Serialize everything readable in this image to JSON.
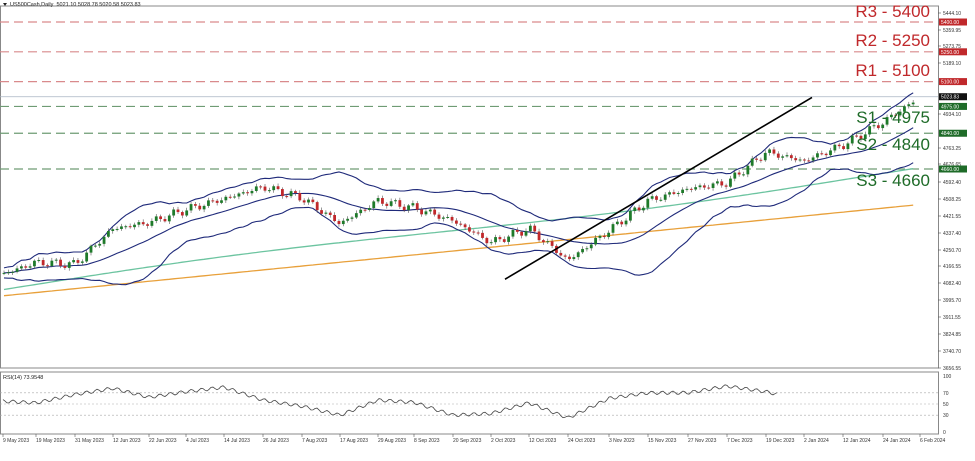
{
  "header": {
    "symbol": "US500Cash,Daily",
    "ohlc": "5021.10 5028.78 5020.58 5023.83"
  },
  "levels": {
    "resistance": [
      {
        "label": "R3 - 5400",
        "price": 5400,
        "tag": "5400.00"
      },
      {
        "label": "R2 - 5250",
        "price": 5250,
        "tag": "5250.00"
      },
      {
        "label": "R1 - 5100",
        "price": 5100,
        "tag": "5100.00"
      }
    ],
    "support": [
      {
        "label": "S1 - 4975",
        "price": 4975,
        "tag": "4975.00"
      },
      {
        "label": "S2 - 4840",
        "price": 4840,
        "tag": "4840.00"
      },
      {
        "label": "S3 - 4660",
        "price": 4660,
        "tag": "4660.00"
      }
    ],
    "colors": {
      "resistance": "#c0282b",
      "support": "#1e6b28"
    }
  },
  "current_price": {
    "value": 5023.83,
    "tag": "5023.83"
  },
  "rsi": {
    "label": "RSI(14) 73.9548",
    "ticks": [
      "100",
      "70",
      "50",
      "30",
      "0"
    ]
  },
  "chart_data": [
    {
      "type": "candlestick",
      "title": "US500Cash,Daily",
      "ohlc_last": {
        "open": 5021.1,
        "high": 5028.78,
        "low": 5020.58,
        "close": 5023.83
      },
      "y_ticks": [
        "5444.10",
        "5359.95",
        "5273.75",
        "5189.10",
        "4934.10",
        "4763.25",
        "4676.65",
        "4592.40",
        "4508.25",
        "4421.55",
        "4337.40",
        "4250.70",
        "4166.55",
        "4082.40",
        "3995.70",
        "3911.55",
        "3824.85",
        "3740.70",
        "3656.55"
      ],
      "ylim": [
        3656.55,
        5444.1
      ],
      "x_ticks": [
        "9 May 2023",
        "19 May 2023",
        "31 May 2023",
        "12 Jun 2023",
        "22 Jun 2023",
        "4 Jul 2023",
        "14 Jul 2023",
        "26 Jul 2023",
        "7 Aug 2023",
        "17 Aug 2023",
        "29 Aug 2023",
        "8 Sep 2023",
        "20 Sep 2023",
        "2 Oct 2023",
        "12 Oct 2023",
        "24 Oct 2023",
        "3 Nov 2023",
        "15 Nov 2023",
        "27 Nov 2023",
        "7 Dec 2023",
        "19 Dec 2023",
        "2 Jan 2024",
        "12 Jan 2024",
        "24 Jan 2024",
        "6 Feb 2024"
      ],
      "approx_close_by_tick": [
        4130,
        4190,
        4180,
        4360,
        4390,
        4455,
        4510,
        4570,
        4515,
        4385,
        4500,
        4465,
        4400,
        4290,
        4360,
        4200,
        4350,
        4500,
        4560,
        4590,
        4745,
        4700,
        4780,
        4895,
        5023
      ],
      "overlays": [
        {
          "name": "Bollinger Bands",
          "color": "#1f2a7a"
        },
        {
          "name": "MA (green)",
          "color": "#6cc4a0",
          "approx_end": 4660
        },
        {
          "name": "MA (orange)",
          "color": "#e8a03a",
          "approx_end": 4480
        },
        {
          "name": "Uptrend line",
          "color": "#000000",
          "from": {
            "date": "27 Oct 2023",
            "price": 4105
          },
          "to": {
            "date": "9 Feb 2024",
            "price": 5000
          }
        }
      ],
      "horizontal_levels": {
        "resistance": [
          5400,
          5250,
          5100
        ],
        "support": [
          4975,
          4840,
          4660
        ]
      },
      "grid": false
    },
    {
      "type": "line",
      "title": "RSI(14) 73.9548",
      "ylim": [
        0,
        100
      ],
      "y_ticks": [
        100,
        70,
        50,
        30,
        0
      ],
      "reference_lines": [
        70,
        50,
        30
      ],
      "x": [
        "9 May 2023",
        "19 May 2023",
        "31 May 2023",
        "12 Jun 2023",
        "22 Jun 2023",
        "4 Jul 2023",
        "14 Jul 2023",
        "26 Jul 2023",
        "7 Aug 2023",
        "17 Aug 2023",
        "29 Aug 2023",
        "8 Sep 2023",
        "20 Sep 2023",
        "2 Oct 2023",
        "12 Oct 2023",
        "24 Oct 2023",
        "3 Nov 2023",
        "15 Nov 2023",
        "27 Nov 2023",
        "7 Dec 2023",
        "19 Dec 2023",
        "2 Jan 2024",
        "12 Jan 2024",
        "24 Jan 2024",
        "6 Feb 2024"
      ],
      "values": [
        55,
        52,
        67,
        78,
        62,
        72,
        80,
        57,
        46,
        30,
        57,
        53,
        30,
        33,
        52,
        25,
        60,
        70,
        70,
        82,
        72,
        56,
        70,
        76,
        74
      ]
    }
  ]
}
